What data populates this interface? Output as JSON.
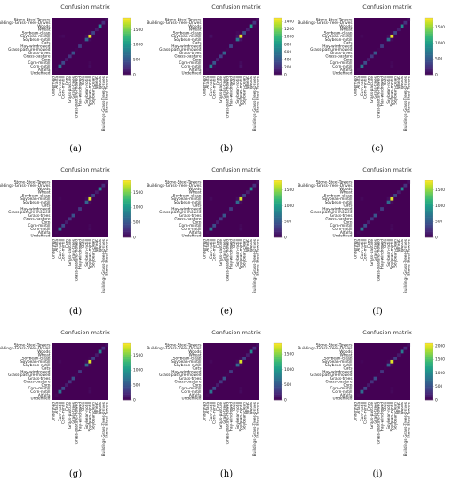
{
  "figure": {
    "title": "Confusion matrix",
    "class_labels": [
      "Undefined",
      "Alfalfa",
      "Corn-notill",
      "Corn-mintill",
      "Corn",
      "Grass-pasture",
      "Grass-trees",
      "Grass-pasture-mowed",
      "Hay-windrowed",
      "Oats",
      "Soybean-notill",
      "Soybean-mintill",
      "Soybean-clean",
      "Wheat",
      "Woods",
      "Buildings-Grass-Trees-Drives",
      "Stone-Steel-Towers"
    ],
    "colormap": [
      "#440154",
      "#482878",
      "#3e4a89",
      "#31688e",
      "#26828e",
      "#1f9e89",
      "#35b779",
      "#6ece58",
      "#b5de2b",
      "#fde725"
    ]
  },
  "chart_data": [
    {
      "type": "heatmap",
      "panel_label": "(a)",
      "title": "Confusion matrix",
      "colorbar_ticks": [
        0,
        500,
        1000,
        1500
      ],
      "colorbar_range": [
        0,
        1900
      ],
      "diagonal": [
        0,
        30,
        700,
        420,
        150,
        300,
        480,
        20,
        320,
        15,
        620,
        1850,
        380,
        140,
        850,
        250,
        70
      ],
      "errors": [
        [
          11,
          2,
          20
        ],
        [
          11,
          10,
          60
        ],
        [
          11,
          3,
          40
        ],
        [
          2,
          11,
          50
        ],
        [
          10,
          11,
          60
        ],
        [
          3,
          11,
          30
        ],
        [
          12,
          11,
          25
        ],
        [
          14,
          15,
          10
        ]
      ]
    },
    {
      "type": "heatmap",
      "panel_label": "(b)",
      "title": "Confusion matrix",
      "colorbar_ticks": [
        0,
        200,
        400,
        600,
        800,
        1000,
        1200,
        1400
      ],
      "colorbar_range": [
        0,
        1500
      ],
      "diagonal": [
        0,
        30,
        680,
        410,
        140,
        290,
        470,
        15,
        310,
        10,
        600,
        1450,
        360,
        130,
        840,
        240,
        65
      ],
      "errors": [
        [
          11,
          2,
          60
        ],
        [
          11,
          10,
          80
        ],
        [
          2,
          11,
          70
        ],
        [
          10,
          11,
          90
        ],
        [
          3,
          11,
          40
        ],
        [
          12,
          10,
          30
        ],
        [
          14,
          15,
          20
        ],
        [
          2,
          3,
          20
        ]
      ]
    },
    {
      "type": "heatmap",
      "panel_label": "(c)",
      "title": "Confusion matrix",
      "colorbar_ticks": [
        0,
        500,
        1000,
        1500
      ],
      "colorbar_range": [
        0,
        1800
      ],
      "diagonal": [
        0,
        30,
        720,
        430,
        150,
        305,
        485,
        18,
        325,
        14,
        630,
        1750,
        385,
        142,
        860,
        255,
        72
      ],
      "errors": [
        [
          11,
          2,
          30
        ],
        [
          11,
          10,
          50
        ],
        [
          2,
          11,
          40
        ],
        [
          10,
          11,
          50
        ],
        [
          3,
          11,
          25
        ],
        [
          12,
          11,
          20
        ],
        [
          14,
          15,
          10
        ]
      ]
    },
    {
      "type": "heatmap",
      "panel_label": "(d)",
      "title": "Confusion matrix",
      "colorbar_ticks": [
        0,
        500,
        1000,
        1500
      ],
      "colorbar_range": [
        0,
        1900
      ],
      "diagonal": [
        0,
        30,
        710,
        420,
        150,
        300,
        480,
        20,
        320,
        15,
        620,
        1820,
        380,
        140,
        850,
        250,
        70
      ],
      "errors": [
        [
          11,
          2,
          25
        ],
        [
          11,
          10,
          55
        ],
        [
          2,
          11,
          45
        ],
        [
          10,
          11,
          55
        ],
        [
          3,
          11,
          30
        ],
        [
          12,
          11,
          25
        ],
        [
          14,
          15,
          10
        ]
      ]
    },
    {
      "type": "heatmap",
      "panel_label": "(e)",
      "title": "Confusion matrix",
      "colorbar_ticks": [
        0,
        500,
        1000,
        1500
      ],
      "colorbar_range": [
        0,
        1800
      ],
      "diagonal": [
        0,
        30,
        700,
        420,
        150,
        300,
        480,
        20,
        320,
        15,
        620,
        1700,
        380,
        140,
        850,
        250,
        70
      ],
      "errors": [
        [
          11,
          2,
          40
        ],
        [
          11,
          10,
          60
        ],
        [
          2,
          11,
          50
        ],
        [
          10,
          11,
          60
        ],
        [
          3,
          11,
          30
        ],
        [
          12,
          11,
          25
        ],
        [
          14,
          15,
          15
        ]
      ]
    },
    {
      "type": "heatmap",
      "panel_label": "(f)",
      "title": "Confusion matrix",
      "colorbar_ticks": [
        0,
        500,
        1000,
        1500
      ],
      "colorbar_range": [
        0,
        1800
      ],
      "diagonal": [
        0,
        30,
        705,
        425,
        150,
        300,
        480,
        20,
        320,
        15,
        625,
        1720,
        380,
        140,
        850,
        250,
        70
      ],
      "errors": [
        [
          11,
          2,
          35
        ],
        [
          11,
          10,
          55
        ],
        [
          2,
          11,
          45
        ],
        [
          10,
          11,
          55
        ],
        [
          3,
          11,
          30
        ],
        [
          12,
          11,
          20
        ],
        [
          14,
          15,
          10
        ]
      ]
    },
    {
      "type": "heatmap",
      "panel_label": "(g)",
      "title": "Confusion matrix",
      "colorbar_ticks": [
        0,
        500,
        1000,
        1500
      ],
      "colorbar_range": [
        0,
        1900
      ],
      "diagonal": [
        0,
        30,
        710,
        425,
        150,
        300,
        480,
        20,
        320,
        15,
        625,
        1800,
        380,
        140,
        850,
        250,
        70
      ],
      "errors": [
        [
          11,
          2,
          30
        ],
        [
          11,
          10,
          55
        ],
        [
          2,
          11,
          45
        ],
        [
          10,
          11,
          55
        ],
        [
          3,
          11,
          30
        ],
        [
          12,
          11,
          25
        ],
        [
          14,
          15,
          10
        ]
      ]
    },
    {
      "type": "heatmap",
      "panel_label": "(h)",
      "title": "Confusion matrix",
      "colorbar_ticks": [
        0,
        500,
        1000,
        1500
      ],
      "colorbar_range": [
        0,
        1850
      ],
      "diagonal": [
        0,
        30,
        700,
        420,
        150,
        300,
        480,
        20,
        320,
        15,
        620,
        1750,
        380,
        140,
        850,
        250,
        70
      ],
      "errors": [
        [
          11,
          2,
          35
        ],
        [
          11,
          10,
          60
        ],
        [
          2,
          11,
          50
        ],
        [
          10,
          11,
          55
        ],
        [
          3,
          11,
          30
        ],
        [
          12,
          11,
          25
        ],
        [
          14,
          15,
          10
        ]
      ]
    },
    {
      "type": "heatmap",
      "panel_label": "(i)",
      "title": "Confusion matrix",
      "colorbar_ticks": [
        0,
        500,
        1000,
        1500,
        2000
      ],
      "colorbar_range": [
        0,
        2100
      ],
      "diagonal": [
        0,
        30,
        720,
        430,
        150,
        305,
        485,
        20,
        325,
        15,
        630,
        2000,
        385,
        142,
        860,
        255,
        72
      ],
      "errors": [
        [
          11,
          2,
          25
        ],
        [
          11,
          10,
          45
        ],
        [
          2,
          11,
          40
        ],
        [
          10,
          11,
          45
        ],
        [
          3,
          11,
          25
        ],
        [
          12,
          11,
          20
        ],
        [
          14,
          15,
          10
        ]
      ]
    }
  ]
}
